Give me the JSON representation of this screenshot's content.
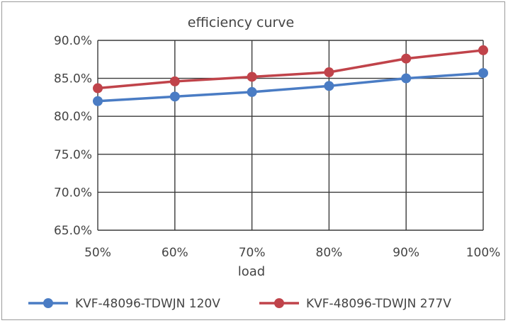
{
  "chart_data": {
    "type": "line",
    "title": "efficiency curve",
    "xlabel": "load",
    "ylabel": "",
    "categories": [
      "50%",
      "60%",
      "70%",
      "80%",
      "90%",
      "100%"
    ],
    "ylim": [
      65.0,
      90.0
    ],
    "yticks": [
      65.0,
      70.0,
      75.0,
      80.0,
      85.0,
      90.0
    ],
    "ytick_labels": [
      "65.0%",
      "70.0%",
      "75.0%",
      "80.0%",
      "85.0%",
      "90.0%"
    ],
    "grid": true,
    "legend_position": "bottom",
    "series": [
      {
        "name": "KVF-48096-TDWJN 120V",
        "color": "#4a7cc4",
        "values": [
          82.0,
          82.6,
          83.2,
          84.0,
          85.0,
          85.7
        ]
      },
      {
        "name": "KVF-48096-TDWJN 277V",
        "color": "#c0434a",
        "values": [
          83.7,
          84.6,
          85.2,
          85.8,
          87.6,
          88.7
        ]
      }
    ]
  }
}
